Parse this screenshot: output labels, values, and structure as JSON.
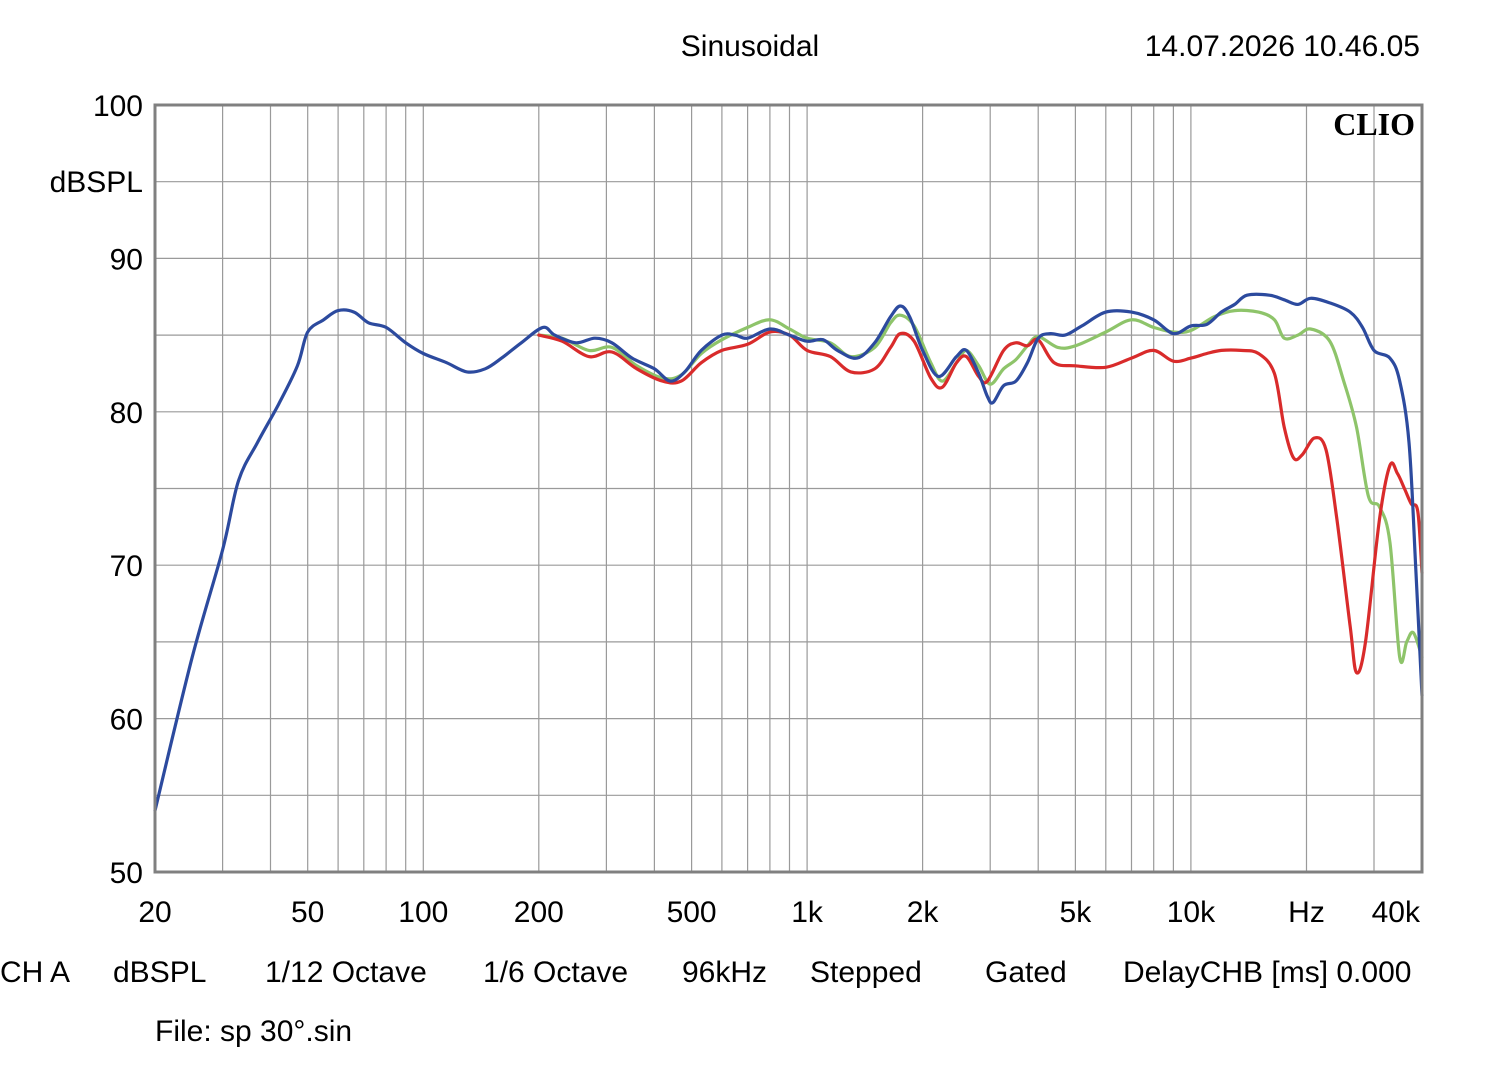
{
  "header": {
    "mode": "Sinusoidal",
    "timestamp": "14.07.2026 10.46.05",
    "brand": "CLIO"
  },
  "footer": {
    "channel": "CH A",
    "unit": "dBSPL",
    "resolution": "1/12 Octave",
    "smoothing": "1/6 Octave",
    "sample_rate": "96kHz",
    "sweep": "Stepped",
    "window": "Gated",
    "delay": "DelayCHB [ms] 0.000",
    "file": "File: sp 30°.sin"
  },
  "chart_data": {
    "type": "line",
    "title": "",
    "xlabel": "Hz",
    "ylabel": "dBSPL",
    "xscale": "log",
    "xlim": [
      20,
      40000
    ],
    "ylim": [
      50,
      100
    ],
    "grid": true,
    "x_ticks": [
      {
        "value": 20,
        "label": "20"
      },
      {
        "value": 50,
        "label": "50"
      },
      {
        "value": 100,
        "label": "100"
      },
      {
        "value": 200,
        "label": "200"
      },
      {
        "value": 500,
        "label": "500"
      },
      {
        "value": 1000,
        "label": "1k"
      },
      {
        "value": 2000,
        "label": "2k"
      },
      {
        "value": 5000,
        "label": "5k"
      },
      {
        "value": 10000,
        "label": "10k"
      },
      {
        "value": 20000,
        "label": "Hz"
      },
      {
        "value": 40000,
        "label": "40k"
      }
    ],
    "y_ticks": [
      {
        "value": 100,
        "label": "100"
      },
      {
        "value": 90,
        "label": "90"
      },
      {
        "value": 80,
        "label": "80"
      },
      {
        "value": 70,
        "label": "70"
      },
      {
        "value": 60,
        "label": "60"
      },
      {
        "value": 50,
        "label": "50"
      }
    ],
    "series": [
      {
        "color": "#2c4a9e",
        "points": [
          [
            20,
            54
          ],
          [
            25,
            64
          ],
          [
            30,
            71
          ],
          [
            33,
            75.5
          ],
          [
            37,
            78
          ],
          [
            42,
            80.5
          ],
          [
            47,
            83
          ],
          [
            50,
            85.2
          ],
          [
            55,
            86
          ],
          [
            60,
            86.6
          ],
          [
            66,
            86.5
          ],
          [
            72,
            85.8
          ],
          [
            80,
            85.5
          ],
          [
            90,
            84.5
          ],
          [
            100,
            83.8
          ],
          [
            115,
            83.2
          ],
          [
            130,
            82.6
          ],
          [
            145,
            82.8
          ],
          [
            160,
            83.5
          ],
          [
            180,
            84.5
          ],
          [
            205,
            85.5
          ],
          [
            220,
            85
          ],
          [
            250,
            84.5
          ],
          [
            280,
            84.8
          ],
          [
            310,
            84.5
          ],
          [
            350,
            83.5
          ],
          [
            400,
            82.8
          ],
          [
            440,
            82
          ],
          [
            480,
            82.6
          ],
          [
            530,
            84
          ],
          [
            600,
            85
          ],
          [
            650,
            85
          ],
          [
            700,
            84.8
          ],
          [
            800,
            85.4
          ],
          [
            900,
            85
          ],
          [
            1000,
            84.6
          ],
          [
            1100,
            84.7
          ],
          [
            1200,
            84
          ],
          [
            1350,
            83.5
          ],
          [
            1500,
            84.5
          ],
          [
            1650,
            86.2
          ],
          [
            1750,
            86.9
          ],
          [
            1850,
            86.2
          ],
          [
            2000,
            84
          ],
          [
            2200,
            82.3
          ],
          [
            2450,
            83.6
          ],
          [
            2600,
            84
          ],
          [
            2800,
            82.5
          ],
          [
            2950,
            81
          ],
          [
            3050,
            80.6
          ],
          [
            3250,
            81.7
          ],
          [
            3500,
            82
          ],
          [
            3750,
            83.2
          ],
          [
            4000,
            84.8
          ],
          [
            4300,
            85.1
          ],
          [
            4700,
            85
          ],
          [
            5200,
            85.6
          ],
          [
            6000,
            86.5
          ],
          [
            7000,
            86.5
          ],
          [
            8000,
            86
          ],
          [
            9000,
            85.1
          ],
          [
            10000,
            85.6
          ],
          [
            11000,
            85.7
          ],
          [
            12000,
            86.5
          ],
          [
            13000,
            87
          ],
          [
            14000,
            87.6
          ],
          [
            16000,
            87.6
          ],
          [
            17500,
            87.3
          ],
          [
            19000,
            87
          ],
          [
            20500,
            87.4
          ],
          [
            23000,
            87.1
          ],
          [
            26000,
            86.5
          ],
          [
            28000,
            85.5
          ],
          [
            30000,
            84
          ],
          [
            33000,
            83.5
          ],
          [
            35000,
            82
          ],
          [
            37000,
            78
          ],
          [
            38500,
            70
          ],
          [
            40000,
            61.5
          ]
        ]
      },
      {
        "color": "#8ec46a",
        "points": [
          [
            200,
            85
          ],
          [
            230,
            84.8
          ],
          [
            270,
            84
          ],
          [
            310,
            84.2
          ],
          [
            360,
            83
          ],
          [
            420,
            82.2
          ],
          [
            470,
            82.4
          ],
          [
            530,
            83.8
          ],
          [
            600,
            84.7
          ],
          [
            700,
            85.5
          ],
          [
            800,
            86
          ],
          [
            900,
            85.4
          ],
          [
            1000,
            84.8
          ],
          [
            1150,
            84.5
          ],
          [
            1300,
            83.6
          ],
          [
            1500,
            84.2
          ],
          [
            1650,
            85.8
          ],
          [
            1750,
            86.3
          ],
          [
            1900,
            85.6
          ],
          [
            2100,
            83.2
          ],
          [
            2250,
            82
          ],
          [
            2450,
            83.2
          ],
          [
            2600,
            84
          ],
          [
            2800,
            83
          ],
          [
            3000,
            81.8
          ],
          [
            3250,
            82.8
          ],
          [
            3500,
            83.4
          ],
          [
            3750,
            84.3
          ],
          [
            4000,
            84.9
          ],
          [
            4500,
            84.2
          ],
          [
            5000,
            84.3
          ],
          [
            6000,
            85.2
          ],
          [
            7000,
            86
          ],
          [
            8000,
            85.5
          ],
          [
            9000,
            85.2
          ],
          [
            10000,
            85.3
          ],
          [
            11500,
            86.2
          ],
          [
            13000,
            86.6
          ],
          [
            15000,
            86.5
          ],
          [
            16500,
            86
          ],
          [
            17500,
            84.8
          ],
          [
            19000,
            85
          ],
          [
            20500,
            85.4
          ],
          [
            23000,
            84.6
          ],
          [
            25000,
            82
          ],
          [
            27000,
            79
          ],
          [
            29000,
            74.5
          ],
          [
            31000,
            73.8
          ],
          [
            33000,
            71.5
          ],
          [
            35000,
            64
          ],
          [
            36500,
            65
          ],
          [
            38000,
            65.6
          ],
          [
            40000,
            64
          ]
        ]
      },
      {
        "color": "#d92b2b",
        "points": [
          [
            200,
            85
          ],
          [
            230,
            84.6
          ],
          [
            270,
            83.6
          ],
          [
            310,
            83.9
          ],
          [
            360,
            82.8
          ],
          [
            420,
            82
          ],
          [
            470,
            82
          ],
          [
            530,
            83.2
          ],
          [
            600,
            84
          ],
          [
            700,
            84.4
          ],
          [
            800,
            85.2
          ],
          [
            900,
            85
          ],
          [
            1000,
            84
          ],
          [
            1150,
            83.6
          ],
          [
            1300,
            82.6
          ],
          [
            1500,
            82.8
          ],
          [
            1650,
            84.2
          ],
          [
            1750,
            85.1
          ],
          [
            1900,
            84.6
          ],
          [
            2100,
            82.2
          ],
          [
            2250,
            81.6
          ],
          [
            2450,
            83.2
          ],
          [
            2600,
            83.6
          ],
          [
            2800,
            82.3
          ],
          [
            2950,
            82
          ],
          [
            3250,
            84
          ],
          [
            3500,
            84.5
          ],
          [
            3750,
            84.3
          ],
          [
            4000,
            84.7
          ],
          [
            4400,
            83.2
          ],
          [
            5000,
            83
          ],
          [
            6000,
            82.9
          ],
          [
            7000,
            83.5
          ],
          [
            8000,
            84
          ],
          [
            9000,
            83.3
          ],
          [
            10000,
            83.5
          ],
          [
            11000,
            83.8
          ],
          [
            12000,
            84
          ],
          [
            13500,
            84
          ],
          [
            15000,
            83.8
          ],
          [
            16500,
            82.5
          ],
          [
            17500,
            79
          ],
          [
            18500,
            77
          ],
          [
            19500,
            77.2
          ],
          [
            21000,
            78.3
          ],
          [
            22500,
            77.5
          ],
          [
            24000,
            73
          ],
          [
            26000,
            66
          ],
          [
            27000,
            63
          ],
          [
            28500,
            65
          ],
          [
            31000,
            73
          ],
          [
            33000,
            76.5
          ],
          [
            34500,
            76
          ],
          [
            36000,
            75
          ],
          [
            37500,
            74
          ],
          [
            39000,
            73.5
          ],
          [
            40000,
            69.5
          ]
        ]
      }
    ]
  }
}
